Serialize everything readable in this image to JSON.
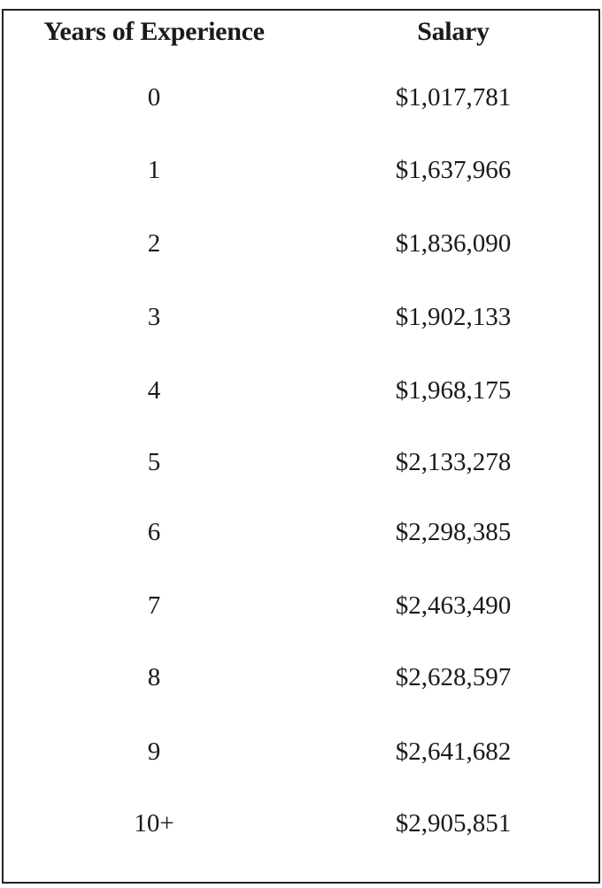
{
  "table": {
    "headers": [
      "Years of Experience",
      "Salary"
    ],
    "rows": [
      [
        "0",
        "$1,017,781"
      ],
      [
        "1",
        "$1,637,966"
      ],
      [
        "2",
        "$1,836,090"
      ],
      [
        "3",
        "$1,902,133"
      ],
      [
        "4",
        "$1,968,175"
      ],
      [
        "5",
        "$2,133,278"
      ],
      [
        "6",
        "$2,298,385"
      ],
      [
        "7",
        "$2,463,490"
      ],
      [
        "8",
        "$2,628,597"
      ],
      [
        "9",
        "$2,641,682"
      ],
      [
        "10+",
        "$2,905,851"
      ]
    ]
  }
}
